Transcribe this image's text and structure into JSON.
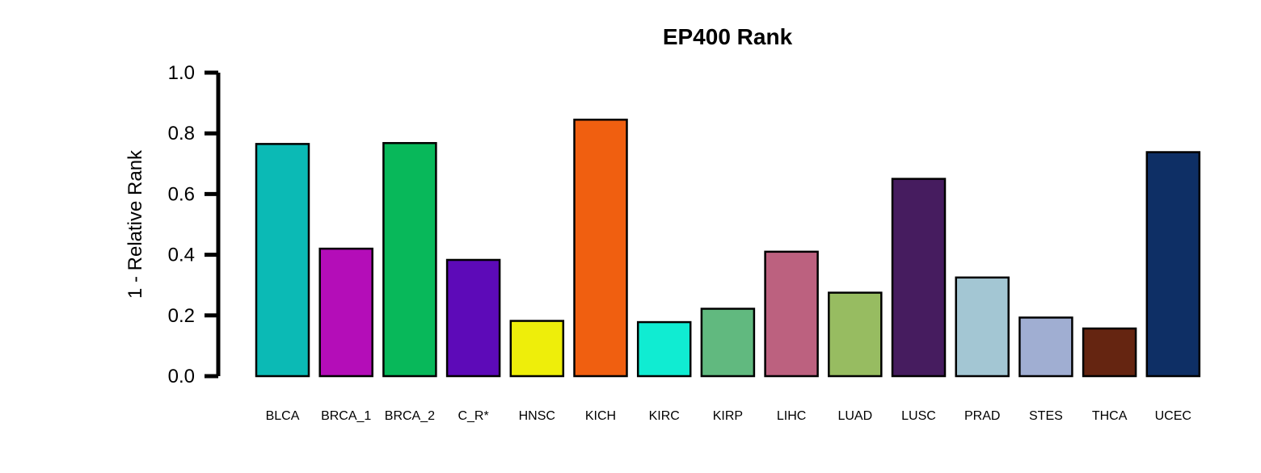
{
  "chart_data": {
    "type": "bar",
    "title": "EP400 Rank",
    "xlabel": "",
    "ylabel": "1 - Relative Rank",
    "ylim": [
      0,
      1
    ],
    "yticks": [
      "0.0",
      "0.2",
      "0.4",
      "0.6",
      "0.8",
      "1.0"
    ],
    "grid": false,
    "categories": [
      "BLCA",
      "BRCA_1",
      "BRCA_2",
      "C_R*",
      "HNSC",
      "KICH",
      "KIRC",
      "KIRP",
      "LIHC",
      "LUAD",
      "LUSC",
      "PRAD",
      "STES",
      "THCA",
      "UCEC"
    ],
    "values": [
      0.765,
      0.42,
      0.768,
      0.383,
      0.182,
      0.845,
      0.178,
      0.222,
      0.41,
      0.275,
      0.65,
      0.325,
      0.193,
      0.157,
      0.738
    ],
    "colors": [
      "#0BBAB5",
      "#B40DB8",
      "#08B85A",
      "#5D0AB8",
      "#EEEE0A",
      "#F05F10",
      "#10ECD2",
      "#61B97F",
      "#BC617F",
      "#97BC61",
      "#461C5F",
      "#A3C6D3",
      "#A0AED2",
      "#652511",
      "#0E2F65"
    ]
  }
}
